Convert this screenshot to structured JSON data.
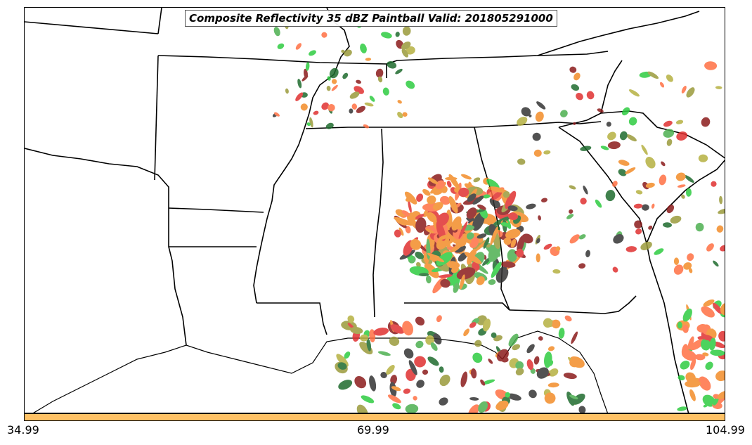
{
  "title": "Composite Reflectivity 35 dBZ Paintball Valid: 201805291000",
  "colorbar": {
    "color": "#ffc266",
    "ticks": [
      "34.99",
      "69.99",
      "104.99"
    ]
  },
  "palette": [
    "#e03030",
    "#f28c28",
    "#8b1a1a",
    "#2ecc40",
    "#1e6b2e",
    "#9a9a3a",
    "#333333",
    "#b5b040",
    "#ff7043",
    "#4caf50"
  ]
}
